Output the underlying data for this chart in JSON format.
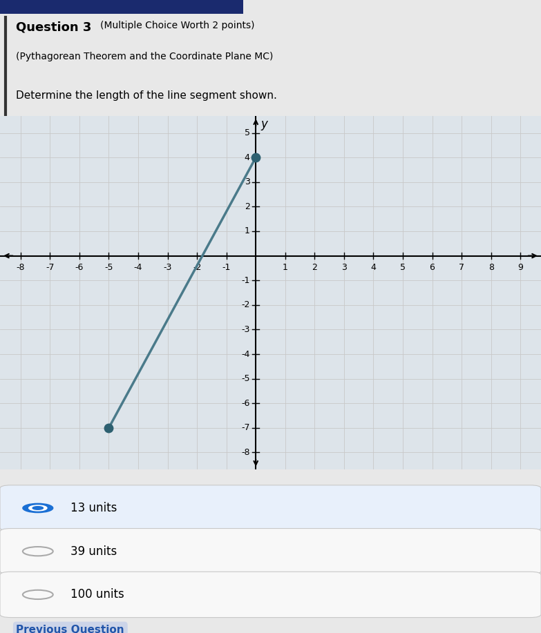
{
  "title_bold": "Question 3",
  "title_suffix": "(Multiple Choice Worth 2 points)",
  "subtitle": "(Pythagorean Theorem and the Coordinate Plane MC)",
  "question": "Determine the length of the line segment shown.",
  "line_x": [
    -5,
    0
  ],
  "line_y": [
    -7,
    4
  ],
  "point1": [
    -5,
    -7
  ],
  "point2": [
    0,
    4
  ],
  "line_color": "#4a7a8a",
  "point_color": "#2d6070",
  "grid_color": "#c8c8c8",
  "axis_color": "#000000",
  "x_range": [
    -8.7,
    9.7
  ],
  "y_range": [
    -8.7,
    5.7
  ],
  "x_ticks": [
    -8,
    -7,
    -6,
    -5,
    -4,
    -3,
    -2,
    -1,
    1,
    2,
    3,
    4,
    5,
    6,
    7,
    8,
    9
  ],
  "y_ticks": [
    -8,
    -7,
    -6,
    -5,
    -4,
    -3,
    -2,
    -1,
    1,
    2,
    3,
    4,
    5
  ],
  "choices": [
    "13 units",
    "39 units",
    "100 units"
  ],
  "selected_index": 0,
  "bg_top": "#e8e8e8",
  "bg_plot": "#dde4ea",
  "bg_bottom": "#e0e0e0",
  "choice_bg_selected": "#e8f0fb",
  "choice_bg_unselected": "#f8f8f8",
  "choice_border": "#c8c8c8",
  "footer_text": "Previous Question",
  "footer_color": "#2255aa",
  "footer_bg": "#ccd4e8"
}
